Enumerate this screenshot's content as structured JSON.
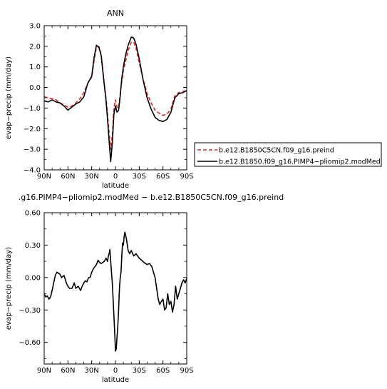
{
  "chart_data": [
    {
      "type": "line",
      "title": "ANN",
      "xlabel": "latitude",
      "ylabel": "evap−precip (mm/day)",
      "xlim": [
        -90,
        90
      ],
      "ylim": [
        -4.0,
        3.0
      ],
      "xticks": [
        {
          "value": -90,
          "label": "90N"
        },
        {
          "value": -60,
          "label": "60N"
        },
        {
          "value": -30,
          "label": "30N"
        },
        {
          "value": 0,
          "label": "0"
        },
        {
          "value": 30,
          "label": "30S"
        },
        {
          "value": 60,
          "label": "60S"
        },
        {
          "value": 90,
          "label": "90S"
        }
      ],
      "yticks": [
        {
          "value": 3.0,
          "label": "3.0"
        },
        {
          "value": 2.0,
          "label": "2.0"
        },
        {
          "value": 1.0,
          "label": "1.0"
        },
        {
          "value": 0.0,
          "label": "0.0"
        },
        {
          "value": -1.0,
          "label": "−1.0"
        },
        {
          "value": -2.0,
          "label": "−2.0"
        },
        {
          "value": -3.0,
          "label": "−3.0"
        },
        {
          "value": -4.0,
          "label": "−4.0"
        }
      ],
      "legend_position": "right",
      "series": [
        {
          "name": "b.e12.B1850C5CN.f09_g16.preind",
          "color": "#e8231e",
          "style": "dashed",
          "x": [
            -90,
            -85,
            -80,
            -75,
            -70,
            -65,
            -60,
            -55,
            -50,
            -45,
            -40,
            -35,
            -30,
            -27,
            -24,
            -21,
            -18,
            -15,
            -12,
            -10,
            -8,
            -6,
            -4,
            -2,
            0,
            2,
            4,
            6,
            8,
            10,
            13,
            16,
            20,
            23,
            26,
            30,
            35,
            40,
            45,
            50,
            55,
            60,
            65,
            70,
            75,
            80,
            85,
            90
          ],
          "y": [
            -0.45,
            -0.5,
            -0.55,
            -0.6,
            -0.75,
            -0.85,
            -0.95,
            -0.9,
            -0.75,
            -0.55,
            -0.25,
            0.2,
            0.5,
            1.3,
            1.95,
            2.0,
            1.6,
            0.5,
            -0.5,
            -1.3,
            -2.2,
            -3.0,
            -2.3,
            -1.0,
            -0.6,
            -0.95,
            -1.0,
            -0.3,
            0.3,
            0.8,
            1.3,
            1.8,
            2.2,
            2.2,
            1.9,
            1.2,
            0.4,
            -0.3,
            -0.75,
            -1.1,
            -1.25,
            -1.35,
            -1.3,
            -1.05,
            -0.4,
            -0.25,
            -0.2,
            -0.15
          ]
        },
        {
          "name": "b.e12.B1850.f09_g16.PIMP4−pliomip2.modMed",
          "color": "#000000",
          "style": "solid",
          "x": [
            -90,
            -85,
            -80,
            -75,
            -70,
            -65,
            -60,
            -55,
            -50,
            -45,
            -40,
            -35,
            -30,
            -27,
            -24,
            -21,
            -18,
            -15,
            -12,
            -10,
            -8,
            -6,
            -4,
            -2,
            0,
            2,
            4,
            6,
            8,
            10,
            13,
            16,
            20,
            23,
            26,
            30,
            35,
            40,
            45,
            50,
            55,
            60,
            65,
            70,
            75,
            80,
            85,
            90
          ],
          "y": [
            -0.65,
            -0.7,
            -0.6,
            -0.7,
            -0.75,
            -0.9,
            -1.1,
            -0.95,
            -0.8,
            -0.7,
            -0.45,
            0.2,
            0.55,
            1.45,
            2.05,
            1.95,
            1.55,
            0.45,
            -0.6,
            -1.55,
            -2.6,
            -3.6,
            -2.7,
            -1.3,
            -0.9,
            -1.2,
            -1.1,
            -0.4,
            0.45,
            1.0,
            1.6,
            2.05,
            2.45,
            2.4,
            2.1,
            1.4,
            0.35,
            -0.5,
            -1.05,
            -1.45,
            -1.6,
            -1.65,
            -1.55,
            -1.2,
            -0.5,
            -0.3,
            -0.25,
            -0.15
          ]
        }
      ]
    },
    {
      "type": "line",
      "title": ".g16.PIMP4−pliomip2.modMed  −  b.e12.B1850C5CN.f09_g16.preind",
      "xlabel": "latitude",
      "ylabel": "evap−precip (mm/day)",
      "xlim": [
        -90,
        90
      ],
      "ylim": [
        -0.8,
        0.6
      ],
      "xticks": [
        {
          "value": -90,
          "label": "90N"
        },
        {
          "value": -60,
          "label": "60N"
        },
        {
          "value": -30,
          "label": "30N"
        },
        {
          "value": 0,
          "label": "0"
        },
        {
          "value": 30,
          "label": "30S"
        },
        {
          "value": 60,
          "label": "60S"
        },
        {
          "value": 90,
          "label": "90S"
        }
      ],
      "yticks": [
        {
          "value": 0.6,
          "label": "0.60"
        },
        {
          "value": 0.3,
          "label": "0.30"
        },
        {
          "value": 0.0,
          "label": "0.00"
        },
        {
          "value": -0.3,
          "label": "−0.30"
        },
        {
          "value": -0.6,
          "label": "−0.60"
        }
      ],
      "series": [
        {
          "name": "",
          "color": "#000000",
          "style": "solid",
          "x": [
            -90,
            -88,
            -86,
            -84,
            -82,
            -80,
            -78,
            -76,
            -74,
            -72,
            -70,
            -68,
            -65,
            -62,
            -60,
            -58,
            -55,
            -52,
            -50,
            -47,
            -44,
            -42,
            -40,
            -38,
            -36,
            -34,
            -32,
            -30,
            -28,
            -26,
            -24,
            -22,
            -20,
            -18,
            -16,
            -14,
            -12,
            -10,
            -9,
            -8,
            -7,
            -6,
            -5,
            -4,
            -3,
            -2,
            -1,
            0,
            1,
            2,
            3,
            4,
            5,
            6,
            7,
            8,
            9,
            10,
            11,
            12,
            14,
            16,
            18,
            20,
            23,
            26,
            30,
            33,
            36,
            40,
            43,
            46,
            48,
            50,
            52,
            54,
            56,
            58,
            60,
            62,
            64,
            66,
            68,
            70,
            72,
            74,
            76,
            78,
            80,
            82,
            84,
            86,
            88,
            90
          ],
          "y": [
            -0.15,
            -0.18,
            -0.17,
            -0.2,
            -0.18,
            -0.12,
            -0.05,
            0.02,
            0.05,
            0.04,
            0.03,
            0.0,
            0.02,
            -0.05,
            -0.08,
            -0.1,
            -0.1,
            -0.05,
            -0.1,
            -0.08,
            -0.12,
            -0.08,
            -0.05,
            -0.03,
            -0.04,
            0.0,
            0.0,
            0.05,
            0.08,
            0.1,
            0.12,
            0.16,
            0.14,
            0.13,
            0.14,
            0.15,
            0.18,
            0.15,
            0.2,
            0.22,
            0.26,
            0.15,
            0.05,
            -0.05,
            -0.2,
            -0.35,
            -0.5,
            -0.68,
            -0.66,
            -0.55,
            -0.45,
            -0.3,
            -0.1,
            0.0,
            0.05,
            0.2,
            0.32,
            0.3,
            0.38,
            0.42,
            0.35,
            0.25,
            0.22,
            0.25,
            0.2,
            0.22,
            0.18,
            0.16,
            0.14,
            0.12,
            0.13,
            0.1,
            0.05,
            0.0,
            -0.1,
            -0.2,
            -0.25,
            -0.22,
            -0.2,
            -0.3,
            -0.28,
            -0.15,
            -0.25,
            -0.22,
            -0.32,
            -0.25,
            -0.08,
            -0.2,
            -0.15,
            -0.1,
            -0.05,
            -0.02,
            -0.05,
            -0.01
          ]
        }
      ]
    }
  ]
}
